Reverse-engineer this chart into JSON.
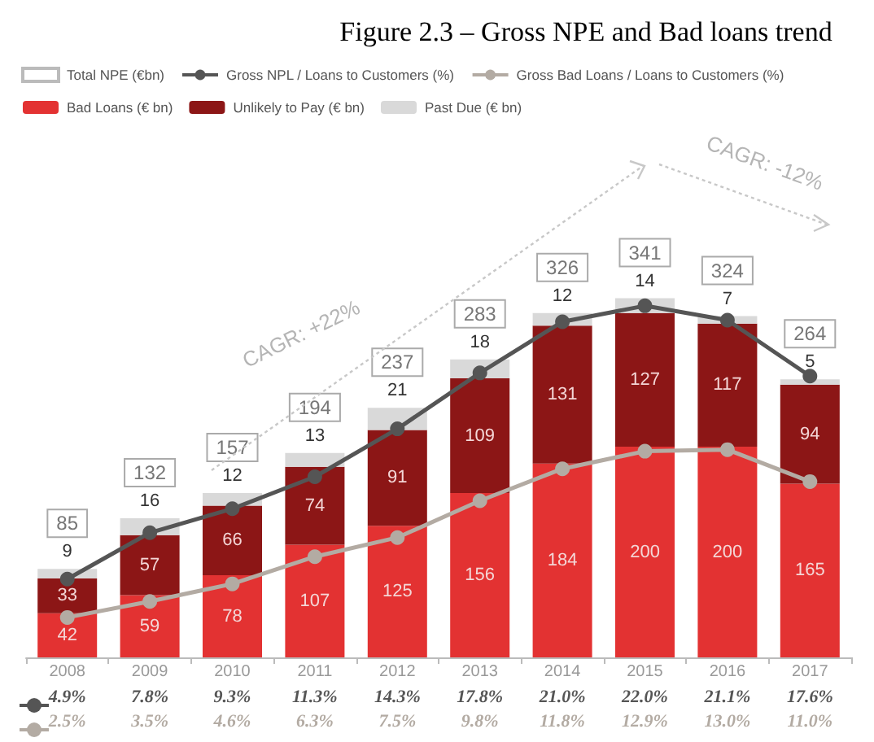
{
  "chart_data": {
    "type": "bar",
    "title": "Figure 2.3 – Gross NPE and Bad loans trend",
    "categories": [
      "2008",
      "2009",
      "2010",
      "2011",
      "2012",
      "2013",
      "2014",
      "2015",
      "2016",
      "2017"
    ],
    "stacked": true,
    "data_labels": true,
    "totals": [
      "85",
      "132",
      "157",
      "194",
      "237",
      "283",
      "326",
      "341",
      "324",
      "264"
    ],
    "legend": "top left",
    "marker": "circle",
    "annotations": [
      "CAGR: +22%",
      "CAGR: -12%"
    ],
    "series": [
      {
        "name": "Total NPE (€bn)",
        "type": "scatter",
        "color": "#ffffff",
        "values": [
          null,
          null,
          null,
          null,
          null,
          null,
          null,
          null,
          null,
          null
        ]
      },
      {
        "name": "Gross NPL / Loans to Customers (%)",
        "type": "line",
        "axis": "y2",
        "color": "#555555",
        "values": [
          4.9,
          7.8,
          9.3,
          11.3,
          14.3,
          17.8,
          21.0,
          22.0,
          21.1,
          17.6
        ],
        "value_labels": [
          "4.9%",
          "7.8%",
          "9.3%",
          "11.3%",
          "14.3%",
          "17.8%",
          "21.0%",
          "22.0%",
          "21.1%",
          "17.6%"
        ]
      },
      {
        "name": "Gross Bad Loans / Loans to Customers (%)",
        "type": "line",
        "axis": "y2",
        "color": "#b3aba3",
        "values": [
          2.5,
          3.5,
          4.6,
          6.3,
          7.5,
          9.8,
          11.8,
          12.9,
          13.0,
          11.0
        ],
        "value_labels": [
          "2.5%",
          "3.5%",
          "4.6%",
          "6.3%",
          "7.5%",
          "9.8%",
          "11.8%",
          "12.9%",
          "13.0%",
          "11.0%"
        ]
      },
      {
        "name": "Bad Loans (€ bn)",
        "color": "#e33232",
        "values": [
          42,
          59,
          78,
          107,
          125,
          156,
          184,
          200,
          200,
          165
        ]
      },
      {
        "name": "Unlikely to Pay (€ bn)",
        "color": "#8c1616",
        "values": [
          33,
          57,
          66,
          74,
          91,
          109,
          131,
          127,
          117,
          94
        ]
      },
      {
        "name": "Past Due (€ bn)",
        "color": "#d9d9d9",
        "values": [
          9,
          16,
          12,
          13,
          21,
          18,
          12,
          14,
          7,
          5
        ]
      }
    ]
  }
}
